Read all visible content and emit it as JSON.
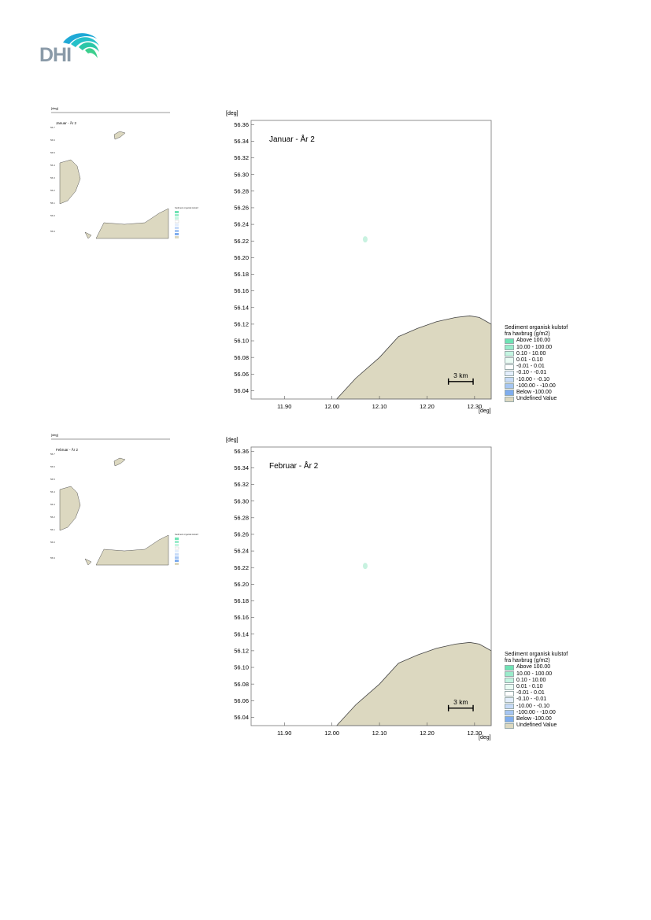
{
  "logo": {
    "text": "DHI"
  },
  "maps": [
    {
      "title": "Januar - År 2",
      "thumb_title": "Januar - År 2"
    },
    {
      "title": "Februar - År 2",
      "thumb_title": "Februar - År 2"
    }
  ],
  "axes": {
    "unit": "[deg]",
    "y_ticks": [
      "56.36",
      "56.34",
      "56.32",
      "56.30",
      "56.28",
      "56.26",
      "56.24",
      "56.22",
      "56.20",
      "56.18",
      "56.16",
      "56.14",
      "56.12",
      "56.10",
      "56.08",
      "56.06",
      "56.04"
    ],
    "x_ticks": [
      "11.90",
      "12.00",
      "12.10",
      "12.20",
      "12.30"
    ],
    "xlim": [
      11.83,
      12.335
    ],
    "ylim": [
      56.03,
      56.365
    ]
  },
  "scale_bar": {
    "label": "3 km"
  },
  "legend": {
    "title_line1": "Sediment organisk kulstof",
    "title_line2": "fra havbrug (g/m2)",
    "items": [
      {
        "label": "Above     100.00",
        "color": "#6fe3b4"
      },
      {
        "label": "10.00 -  100.00",
        "color": "#9aeccb"
      },
      {
        "label": "0.10 -    10.00",
        "color": "#c4f5e1"
      },
      {
        "label": "0.01 -      0.10",
        "color": "#eafcf4"
      },
      {
        "label": "-0.01 -      0.01",
        "color": "#ffffff"
      },
      {
        "label": "-0.10 -     -0.01",
        "color": "#e4eefc"
      },
      {
        "label": "-10.00 -    -0.10",
        "color": "#c7dbf8"
      },
      {
        "label": "-100.00 -  -10.00",
        "color": "#a6c6f3"
      },
      {
        "label": "Below   -100.00",
        "color": "#7fadee"
      },
      {
        "label": "Undefined Value",
        "color": "#dcd8c0"
      }
    ]
  },
  "colors": {
    "land": "#dcd8c0",
    "land_edge": "#444444",
    "patch": "#c8f2e0"
  }
}
